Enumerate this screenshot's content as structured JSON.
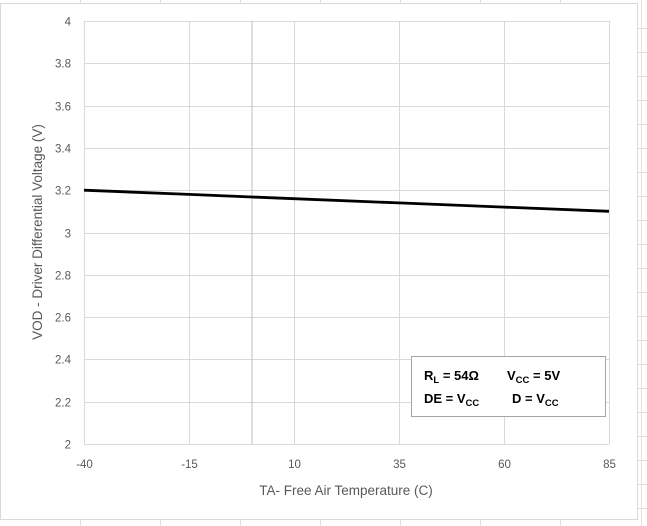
{
  "chart_data": {
    "type": "line",
    "title": "",
    "xlabel": "TA- Free Air Temperature (C)",
    "ylabel": "VOD - Driver Differential Voltage (V)",
    "xlim": [
      -40,
      85
    ],
    "ylim": [
      2,
      4
    ],
    "x_ticks": [
      -40,
      -15,
      10,
      35,
      60,
      85
    ],
    "y_ticks": [
      2,
      2.2,
      2.4,
      2.6,
      2.8,
      3,
      3.2,
      3.4,
      3.6,
      3.8,
      4
    ],
    "y_tick_labels": [
      "2",
      "2.2",
      "2.4",
      "2.6",
      "2.8",
      "3",
      "3.2",
      "3.4",
      "3.6",
      "3.8",
      "4"
    ],
    "x_tick_labels": [
      "-40",
      "-15",
      "10",
      "35",
      "60",
      "85"
    ],
    "grid": true,
    "legend": "none",
    "series": [
      {
        "name": "VOD",
        "color": "#000000",
        "x": [
          -40,
          -15,
          10,
          35,
          60,
          85
        ],
        "values": [
          3.2,
          3.18,
          3.16,
          3.14,
          3.12,
          3.1
        ]
      }
    ],
    "annotation": {
      "line1_a": "R",
      "line1_a_sub": "L",
      "line1_b": " = 54Ω",
      "line1_c": "V",
      "line1_c_sub": "CC",
      "line1_d": " = 5V",
      "line2_a": "DE =  V",
      "line2_a_sub": "CC",
      "line2_b": "D =  V",
      "line2_b_sub": "CC"
    }
  }
}
